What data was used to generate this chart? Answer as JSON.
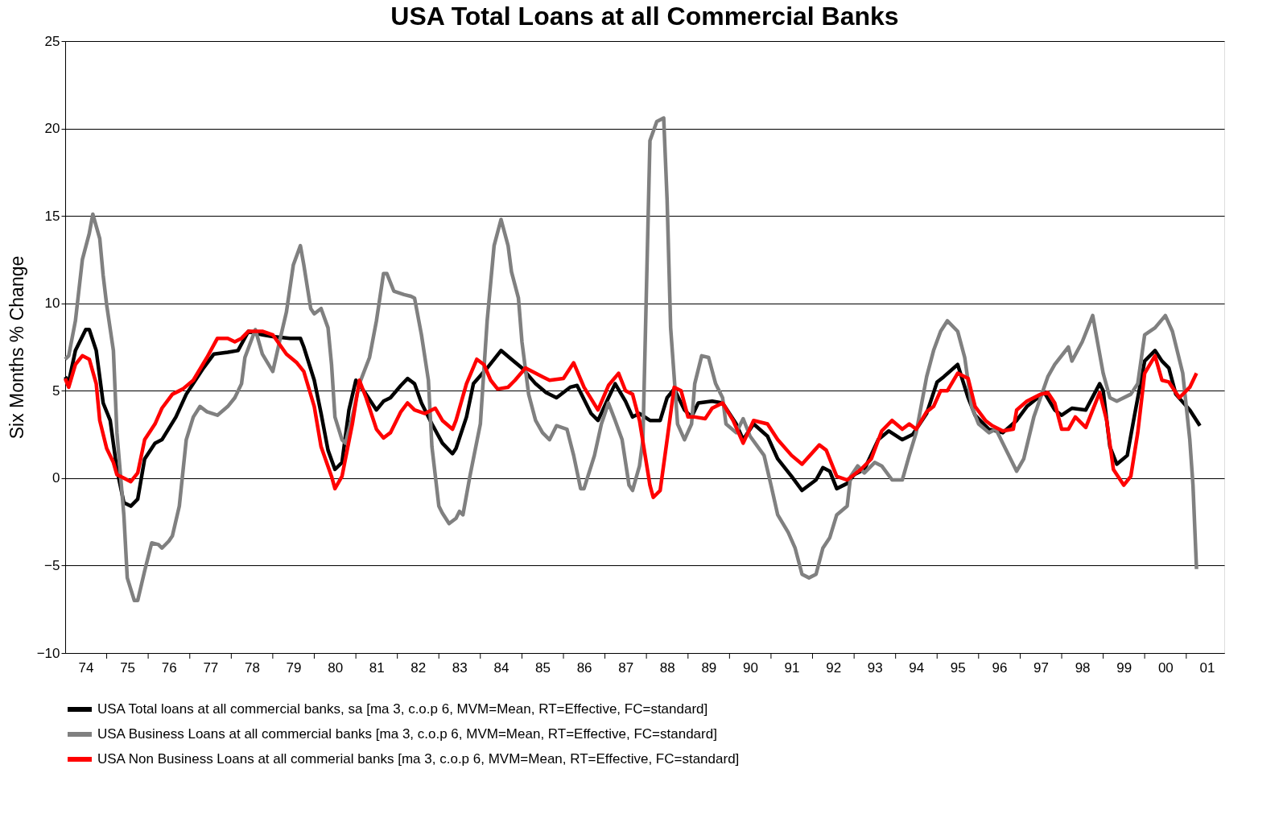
{
  "chart_data": {
    "type": "line",
    "title": "USA Total Loans at all Commercial Banks",
    "ylabel": "Six Months % Change",
    "xlim": [
      "1974-01",
      "2001-12"
    ],
    "ylim": [
      -10,
      25
    ],
    "yticks": [
      -10,
      -5,
      0,
      5,
      10,
      15,
      20,
      25
    ],
    "grid": "y",
    "legend": "bottom",
    "xticks": [
      {
        "value": "1974-07",
        "label": "74"
      },
      {
        "value": "1975-07",
        "label": "75"
      },
      {
        "value": "1976-07",
        "label": "76"
      },
      {
        "value": "1977-07",
        "label": "77"
      },
      {
        "value": "1978-07",
        "label": "78"
      },
      {
        "value": "1979-07",
        "label": "79"
      },
      {
        "value": "1980-07",
        "label": "80"
      },
      {
        "value": "1981-07",
        "label": "81"
      },
      {
        "value": "1982-07",
        "label": "82"
      },
      {
        "value": "1983-07",
        "label": "83"
      },
      {
        "value": "1984-07",
        "label": "84"
      },
      {
        "value": "1985-07",
        "label": "85"
      },
      {
        "value": "1986-07",
        "label": "86"
      },
      {
        "value": "1987-07",
        "label": "87"
      },
      {
        "value": "1988-07",
        "label": "88"
      },
      {
        "value": "1989-07",
        "label": "89"
      },
      {
        "value": "1990-07",
        "label": "90"
      },
      {
        "value": "1991-07",
        "label": "91"
      },
      {
        "value": "1992-07",
        "label": "92"
      },
      {
        "value": "1993-07",
        "label": "93"
      },
      {
        "value": "1994-07",
        "label": "94"
      },
      {
        "value": "1995-07",
        "label": "95"
      },
      {
        "value": "1996-07",
        "label": "96"
      },
      {
        "value": "1997-07",
        "label": "97"
      },
      {
        "value": "1998-07",
        "label": "98"
      },
      {
        "value": "1999-07",
        "label": "99"
      },
      {
        "value": "2000-07",
        "label": "00"
      },
      {
        "value": "2001-07",
        "label": "01"
      },
      {
        "value": "1975-01",
        "label": null
      },
      {
        "value": "1976-01",
        "label": null
      },
      {
        "value": "1977-01",
        "label": null
      },
      {
        "value": "1978-01",
        "label": null
      },
      {
        "value": "1979-01",
        "label": null
      },
      {
        "value": "1980-01",
        "label": null
      },
      {
        "value": "1981-01",
        "label": null
      },
      {
        "value": "1982-01",
        "label": null
      },
      {
        "value": "1983-01",
        "label": null
      },
      {
        "value": "1984-01",
        "label": null
      },
      {
        "value": "1985-01",
        "label": null
      },
      {
        "value": "1986-01",
        "label": null
      },
      {
        "value": "1987-01",
        "label": null
      },
      {
        "value": "1988-01",
        "label": null
      },
      {
        "value": "1989-01",
        "label": null
      },
      {
        "value": "1990-01",
        "label": null
      },
      {
        "value": "1991-01",
        "label": null
      },
      {
        "value": "1992-01",
        "label": null
      },
      {
        "value": "1993-01",
        "label": null
      },
      {
        "value": "1994-01",
        "label": null
      },
      {
        "value": "1995-01",
        "label": null
      },
      {
        "value": "1996-01",
        "label": null
      },
      {
        "value": "1997-01",
        "label": null
      },
      {
        "value": "1998-01",
        "label": null
      },
      {
        "value": "1999-01",
        "label": null
      },
      {
        "value": "2000-01",
        "label": null
      },
      {
        "value": "2001-01",
        "label": null
      }
    ],
    "series": [
      {
        "name": "USA Total loans at all commercial banks, sa   [ma 3, c.o.p 6, MVM=Mean, RT=Effective, FC=standard]",
        "color": "#000000",
        "x": [
          "1974-01",
          "1974-02",
          "1974-04",
          "1974-07",
          "1974-08",
          "1974-10",
          "1974-12",
          "1975-02",
          "1975-04",
          "1975-06",
          "1975-08",
          "1975-10",
          "1975-12",
          "1976-03",
          "1976-05",
          "1976-09",
          "1976-12",
          "1977-05",
          "1977-08",
          "1977-12",
          "1978-03",
          "1978-06",
          "1978-10",
          "1979-01",
          "1979-06",
          "1979-09",
          "1979-10",
          "1980-01",
          "1980-03",
          "1980-05",
          "1980-07",
          "1980-09",
          "1980-11",
          "1981-01",
          "1981-04",
          "1981-07",
          "1981-09",
          "1981-11",
          "1982-02",
          "1982-04",
          "1982-06",
          "1982-08",
          "1982-11",
          "1983-02",
          "1983-05",
          "1983-06",
          "1983-09",
          "1983-11",
          "1984-03",
          "1984-07",
          "1984-10",
          "1985-01",
          "1985-05",
          "1985-08",
          "1985-11",
          "1986-03",
          "1986-05",
          "1986-09",
          "1986-11",
          "1987-02",
          "1987-04",
          "1987-07",
          "1987-09",
          "1987-11",
          "1988-02",
          "1988-05",
          "1988-07",
          "1988-09",
          "1988-12",
          "1989-02",
          "1989-04",
          "1989-08",
          "1989-11",
          "1990-03",
          "1990-05",
          "1990-08",
          "1990-12",
          "1991-03",
          "1991-07",
          "1991-10",
          "1992-02",
          "1992-04",
          "1992-06",
          "1992-08",
          "1992-11",
          "1993-01",
          "1993-04",
          "1993-08",
          "1993-11",
          "1994-03",
          "1994-06",
          "1994-10",
          "1995-01",
          "1995-03",
          "1995-07",
          "1995-10",
          "1995-12",
          "1996-04",
          "1996-08",
          "1996-12",
          "1997-03",
          "1997-08",
          "1997-11",
          "1998-01",
          "1998-04",
          "1998-08",
          "1998-12",
          "1999-01",
          "1999-03",
          "1999-05",
          "1999-08",
          "1999-10",
          "2000-01",
          "2000-04",
          "2000-06",
          "2000-08",
          "2000-10",
          "2001-02",
          "2001-05"
        ],
        "values": [
          5.8,
          5.5,
          7.3,
          8.5,
          8.5,
          7.3,
          4.3,
          3.3,
          0.5,
          -1.4,
          -1.6,
          -1.2,
          1.1,
          2.0,
          2.2,
          3.5,
          4.8,
          6.3,
          7.1,
          7.2,
          7.3,
          8.4,
          8.2,
          8.1,
          8.0,
          8.0,
          7.5,
          5.6,
          3.7,
          1.6,
          0.5,
          0.9,
          3.9,
          5.6,
          4.8,
          3.9,
          4.4,
          4.6,
          5.3,
          5.7,
          5.4,
          4.3,
          3.1,
          2.0,
          1.4,
          1.7,
          3.5,
          5.4,
          6.3,
          7.3,
          6.8,
          6.3,
          5.4,
          4.9,
          4.6,
          5.2,
          5.3,
          3.7,
          3.3,
          4.6,
          5.4,
          4.4,
          3.5,
          3.7,
          3.3,
          3.3,
          4.6,
          5.1,
          3.9,
          3.5,
          4.3,
          4.4,
          4.3,
          3.1,
          2.2,
          3.1,
          2.4,
          1.1,
          0.1,
          -0.7,
          -0.1,
          0.6,
          0.4,
          -0.6,
          -0.3,
          0.2,
          0.5,
          2.2,
          2.7,
          2.2,
          2.5,
          3.7,
          5.5,
          5.8,
          6.5,
          4.6,
          3.6,
          2.8,
          2.6,
          3.3,
          4.1,
          4.9,
          3.9,
          3.6,
          4.0,
          3.9,
          5.4,
          5.0,
          1.8,
          0.8,
          1.3,
          3.5,
          6.7,
          7.3,
          6.7,
          6.3,
          4.8,
          3.9,
          3.0
        ]
      },
      {
        "name": "USA Business Loans at all commercial banks   [ma 3, c.o.p 6, MVM=Mean, RT=Effective, FC=standard]",
        "color": "#808080",
        "x": [
          "1974-01",
          "1974-02",
          "1974-04",
          "1974-06",
          "1974-08",
          "1974-09",
          "1974-11",
          "1974-12",
          "1975-01",
          "1975-03",
          "1975-04",
          "1975-06",
          "1975-07",
          "1975-09",
          "1975-10",
          "1975-12",
          "1976-02",
          "1976-04",
          "1976-05",
          "1976-07",
          "1976-08",
          "1976-10",
          "1976-12",
          "1977-02",
          "1977-04",
          "1977-06",
          "1977-09",
          "1977-12",
          "1978-02",
          "1978-04",
          "1978-05",
          "1978-08",
          "1978-10",
          "1979-01",
          "1979-03",
          "1979-05",
          "1979-07",
          "1979-09",
          "1979-10",
          "1979-12",
          "1980-01",
          "1980-03",
          "1980-05",
          "1980-06",
          "1980-07",
          "1980-09",
          "1980-10",
          "1980-12",
          "1981-02",
          "1981-05",
          "1981-07",
          "1981-09",
          "1981-10",
          "1981-12",
          "1982-03",
          "1982-05",
          "1982-06",
          "1982-08",
          "1982-10",
          "1982-11",
          "1983-01",
          "1983-02",
          "1983-04",
          "1983-06",
          "1983-07",
          "1983-08",
          "1983-10",
          "1984-01",
          "1984-03",
          "1984-05",
          "1984-07",
          "1984-09",
          "1984-10",
          "1984-12",
          "1985-01",
          "1985-03",
          "1985-05",
          "1985-07",
          "1985-09",
          "1985-11",
          "1986-02",
          "1986-04",
          "1986-06",
          "1986-07",
          "1986-10",
          "1986-12",
          "1987-02",
          "1987-04",
          "1987-06",
          "1987-08",
          "1987-09",
          "1987-11",
          "1987-12",
          "1988-02",
          "1988-04",
          "1988-06",
          "1988-07",
          "1988-08",
          "1988-10",
          "1988-12",
          "1989-02",
          "1989-03",
          "1989-05",
          "1989-07",
          "1989-09",
          "1989-11",
          "1989-12",
          "1990-03",
          "1990-05",
          "1990-07",
          "1990-11",
          "1991-01",
          "1991-03",
          "1991-06",
          "1991-08",
          "1991-10",
          "1991-12",
          "1992-02",
          "1992-04",
          "1992-06",
          "1992-08",
          "1992-11",
          "1992-12",
          "1993-02",
          "1993-04",
          "1993-07",
          "1993-09",
          "1993-12",
          "1994-03",
          "1994-05",
          "1994-07",
          "1994-10",
          "1994-12",
          "1995-02",
          "1995-04",
          "1995-07",
          "1995-09",
          "1995-11",
          "1996-01",
          "1996-04",
          "1996-06",
          "1996-08",
          "1996-12",
          "1997-02",
          "1997-05",
          "1997-09",
          "1997-11",
          "1998-03",
          "1998-04",
          "1998-07",
          "1998-10",
          "1999-01",
          "1999-03",
          "1999-05",
          "1999-09",
          "1999-11",
          "2000-01",
          "2000-04",
          "2000-07",
          "2000-09",
          "2000-12",
          "2001-02",
          "2001-03",
          "2001-04"
        ],
        "values": [
          6.8,
          7.0,
          9.0,
          12.5,
          14.0,
          15.1,
          13.7,
          11.6,
          9.9,
          7.3,
          2.6,
          -2.1,
          -5.7,
          -7.0,
          -7.0,
          -5.3,
          -3.7,
          -3.8,
          -4.0,
          -3.6,
          -3.3,
          -1.6,
          2.2,
          3.5,
          4.1,
          3.8,
          3.6,
          4.1,
          4.6,
          5.4,
          6.9,
          8.5,
          7.1,
          6.1,
          7.8,
          9.5,
          12.2,
          13.3,
          12.2,
          9.7,
          9.4,
          9.7,
          8.6,
          6.5,
          3.5,
          2.2,
          2.0,
          3.5,
          5.4,
          6.9,
          9.0,
          11.7,
          11.7,
          10.7,
          10.5,
          10.4,
          10.3,
          8.2,
          5.6,
          1.8,
          -1.6,
          -2.0,
          -2.6,
          -2.3,
          -1.9,
          -2.1,
          0.1,
          3.1,
          9.0,
          13.3,
          14.8,
          13.3,
          11.8,
          10.3,
          7.8,
          4.8,
          3.3,
          2.6,
          2.2,
          3.0,
          2.8,
          1.3,
          -0.6,
          -0.6,
          1.3,
          3.1,
          4.3,
          3.3,
          2.2,
          -0.4,
          -0.7,
          0.7,
          2.2,
          19.3,
          20.4,
          20.6,
          15.9,
          8.6,
          3.1,
          2.2,
          3.1,
          5.4,
          7.0,
          6.9,
          5.4,
          4.6,
          3.1,
          2.6,
          3.4,
          2.4,
          1.3,
          -0.4,
          -2.1,
          -3.1,
          -4.0,
          -5.5,
          -5.7,
          -5.5,
          -4.0,
          -3.4,
          -2.1,
          -1.6,
          0.1,
          0.7,
          0.3,
          0.9,
          0.7,
          -0.1,
          -0.1,
          1.3,
          2.6,
          5.8,
          7.3,
          8.4,
          9.0,
          8.4,
          6.9,
          4.1,
          3.1,
          2.6,
          2.8,
          2.0,
          0.4,
          1.1,
          3.5,
          5.8,
          6.5,
          7.5,
          6.7,
          7.8,
          9.3,
          6.0,
          4.6,
          4.4,
          4.8,
          5.4,
          8.2,
          8.6,
          9.3,
          8.4,
          6.0,
          2.2,
          -0.4,
          -5.2
        ]
      },
      {
        "name": "USA Non Business Loans at all commerial banks   [ma 3, c.o.p 6, MVM=Mean, RT=Effective, FC=standard]",
        "color": "#ff0000",
        "x": [
          "1974-01",
          "1974-02",
          "1974-04",
          "1974-06",
          "1974-08",
          "1974-10",
          "1974-11",
          "1975-01",
          "1975-03",
          "1975-04",
          "1975-06",
          "1975-08",
          "1975-10",
          "1975-12",
          "1976-03",
          "1976-05",
          "1976-08",
          "1976-11",
          "1977-02",
          "1977-06",
          "1977-09",
          "1977-12",
          "1978-02",
          "1978-04",
          "1978-06",
          "1978-10",
          "1979-01",
          "1979-05",
          "1979-08",
          "1979-10",
          "1980-01",
          "1980-03",
          "1980-06",
          "1980-07",
          "1980-09",
          "1980-12",
          "1981-02",
          "1981-04",
          "1981-07",
          "1981-09",
          "1981-11",
          "1982-02",
          "1982-04",
          "1982-06",
          "1982-09",
          "1982-12",
          "1983-02",
          "1983-05",
          "1983-06",
          "1983-09",
          "1983-12",
          "1984-02",
          "1984-04",
          "1984-06",
          "1984-09",
          "1984-11",
          "1985-02",
          "1985-05",
          "1985-07",
          "1985-09",
          "1986-01",
          "1986-04",
          "1986-07",
          "1986-11",
          "1987-02",
          "1987-05",
          "1987-07",
          "1987-09",
          "1987-11",
          "1988-02",
          "1988-03",
          "1988-05",
          "1988-07",
          "1988-09",
          "1988-11",
          "1989-01",
          "1989-03",
          "1989-06",
          "1989-08",
          "1989-11",
          "1990-02",
          "1990-05",
          "1990-08",
          "1990-12",
          "1991-03",
          "1991-07",
          "1991-10",
          "1992-03",
          "1992-05",
          "1992-08",
          "1992-11",
          "1993-01",
          "1993-03",
          "1993-06",
          "1993-09",
          "1993-12",
          "1994-03",
          "1994-05",
          "1994-07",
          "1994-10",
          "1994-12",
          "1995-02",
          "1995-04",
          "1995-07",
          "1995-10",
          "1995-12",
          "1996-03",
          "1996-05",
          "1996-08",
          "1996-11",
          "1996-12",
          "1997-03",
          "1997-07",
          "1997-09",
          "1997-11",
          "1998-01",
          "1998-03",
          "1998-05",
          "1998-08",
          "1998-10",
          "1998-12",
          "1999-02",
          "1999-04",
          "1999-07",
          "1999-09",
          "1999-11",
          "2000-01",
          "2000-04",
          "2000-06",
          "2000-08",
          "2000-11",
          "2001-02",
          "2001-04"
        ],
        "values": [
          5.7,
          5.2,
          6.5,
          7.0,
          6.8,
          5.4,
          3.3,
          1.7,
          0.9,
          0.2,
          0.0,
          -0.2,
          0.3,
          2.2,
          3.1,
          4.0,
          4.8,
          5.1,
          5.6,
          6.9,
          8.0,
          8.0,
          7.8,
          8.0,
          8.4,
          8.4,
          8.2,
          7.1,
          6.6,
          6.1,
          4.1,
          1.8,
          0.1,
          -0.6,
          0.1,
          3.1,
          5.6,
          4.6,
          2.8,
          2.3,
          2.6,
          3.8,
          4.3,
          3.9,
          3.7,
          4.0,
          3.3,
          2.8,
          3.3,
          5.4,
          6.8,
          6.5,
          5.6,
          5.1,
          5.2,
          5.6,
          6.3,
          6.0,
          5.8,
          5.6,
          5.7,
          6.6,
          5.2,
          3.9,
          5.3,
          6.0,
          5.0,
          4.8,
          3.3,
          -0.4,
          -1.1,
          -0.7,
          2.2,
          5.2,
          5.0,
          3.5,
          3.5,
          3.4,
          4.0,
          4.3,
          3.3,
          2.0,
          3.3,
          3.1,
          2.2,
          1.3,
          0.8,
          1.9,
          1.6,
          0.1,
          -0.1,
          0.2,
          0.5,
          1.1,
          2.7,
          3.3,
          2.8,
          3.1,
          2.8,
          3.8,
          4.1,
          5.0,
          5.0,
          6.0,
          5.7,
          4.1,
          3.3,
          3.0,
          2.7,
          2.8,
          3.9,
          4.4,
          4.8,
          4.9,
          4.3,
          2.8,
          2.8,
          3.5,
          2.9,
          3.9,
          4.9,
          3.3,
          0.5,
          -0.4,
          0.1,
          2.6,
          6.0,
          7.0,
          5.6,
          5.5,
          4.6,
          5.2,
          6.0
        ]
      }
    ]
  }
}
